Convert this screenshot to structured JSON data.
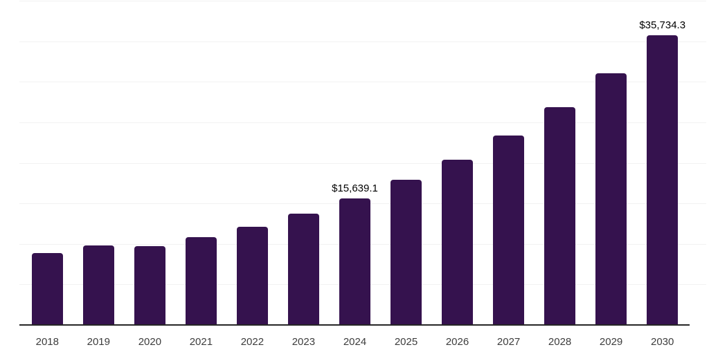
{
  "chart_data": {
    "type": "bar",
    "title": "",
    "xlabel": "",
    "ylabel": "",
    "categories": [
      "2018",
      "2019",
      "2020",
      "2021",
      "2022",
      "2023",
      "2024",
      "2025",
      "2026",
      "2027",
      "2028",
      "2029",
      "2030"
    ],
    "values": [
      8900,
      9800,
      9750,
      10850,
      12100,
      13750,
      15639.1,
      17900,
      20400,
      23400,
      26900,
      31100,
      35734.3
    ],
    "data_labels": [
      {
        "category": "2024",
        "text": "$15,639.1"
      },
      {
        "category": "2030",
        "text": "$35,734.3"
      }
    ],
    "ylim": [
      0,
      40000
    ],
    "gridline_step": 5000,
    "grid": true,
    "legend": false,
    "y_axis_tick_labels_visible": false
  },
  "colors": {
    "background": "#ffffff",
    "bar": "#35124E",
    "gridline": "#f2f2f2",
    "axis_line": "#262626",
    "tick_label": "#3d3d3d",
    "data_label": "#000000"
  }
}
